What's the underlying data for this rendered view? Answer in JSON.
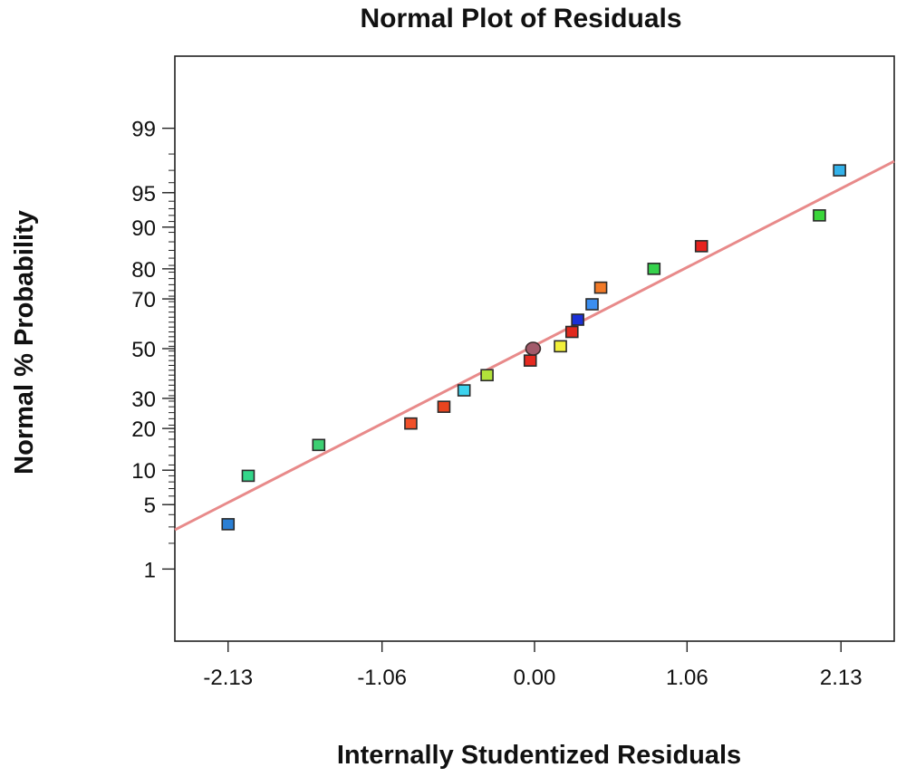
{
  "chart_data": {
    "type": "scatter",
    "title": "Normal Plot of Residuals",
    "xlabel": "Internally Studentized Residuals",
    "ylabel": "Normal % Probability",
    "x_ticks": [
      {
        "value": -2.13,
        "label": "-2.13"
      },
      {
        "value": -1.06,
        "label": "-1.06"
      },
      {
        "value": 0.0,
        "label": "0.00"
      },
      {
        "value": 1.06,
        "label": "1.06"
      },
      {
        "value": 2.13,
        "label": "2.13"
      }
    ],
    "y_ticks": [
      {
        "value": 1,
        "label": "1"
      },
      {
        "value": 5,
        "label": "5"
      },
      {
        "value": 10,
        "label": "10"
      },
      {
        "value": 20,
        "label": "20"
      },
      {
        "value": 30,
        "label": "30"
      },
      {
        "value": 50,
        "label": "50"
      },
      {
        "value": 70,
        "label": "70"
      },
      {
        "value": 80,
        "label": "80"
      },
      {
        "value": 90,
        "label": "90"
      },
      {
        "value": 95,
        "label": "95"
      },
      {
        "value": 99,
        "label": "99"
      }
    ],
    "y_scale": "normal-probability",
    "xlim": [
      -2.5,
      2.5
    ],
    "ylim": [
      0.1,
      99.9
    ],
    "grid": false,
    "points": [
      {
        "x": -2.13,
        "y": 3.2,
        "color": "#2a7fd4",
        "shape": "square"
      },
      {
        "x": -1.99,
        "y": 9.0,
        "color": "#33d68a",
        "shape": "square"
      },
      {
        "x": -1.5,
        "y": 15.5,
        "color": "#3ccf72",
        "shape": "square"
      },
      {
        "x": -0.86,
        "y": 21.5,
        "color": "#f0502a",
        "shape": "square"
      },
      {
        "x": -0.63,
        "y": 27.0,
        "color": "#e8441f",
        "shape": "square"
      },
      {
        "x": -0.49,
        "y": 33.0,
        "color": "#3dd3ee",
        "shape": "square"
      },
      {
        "x": -0.33,
        "y": 39.0,
        "color": "#b2e23a",
        "shape": "square"
      },
      {
        "x": -0.03,
        "y": 45.0,
        "color": "#e62a20",
        "shape": "square"
      },
      {
        "x": -0.01,
        "y": 50.0,
        "color": "#a25a6a",
        "shape": "circle"
      },
      {
        "x": 0.18,
        "y": 51.0,
        "color": "#f2f03a",
        "shape": "square"
      },
      {
        "x": 0.26,
        "y": 57.0,
        "color": "#e02a1e",
        "shape": "square"
      },
      {
        "x": 0.3,
        "y": 62.0,
        "color": "#1a30d8",
        "shape": "square"
      },
      {
        "x": 0.4,
        "y": 68.0,
        "color": "#3a8ef0",
        "shape": "square"
      },
      {
        "x": 0.46,
        "y": 74.0,
        "color": "#f27a28",
        "shape": "square"
      },
      {
        "x": 0.83,
        "y": 80.0,
        "color": "#36d24c",
        "shape": "square"
      },
      {
        "x": 1.16,
        "y": 86.0,
        "color": "#e8221e",
        "shape": "square"
      },
      {
        "x": 1.98,
        "y": 92.0,
        "color": "#3ad63a",
        "shape": "square"
      },
      {
        "x": 2.12,
        "y": 97.0,
        "color": "#33b2ea",
        "shape": "square"
      }
    ],
    "fit_line": {
      "x": [
        -2.5,
        2.5
      ],
      "y": [
        2.8,
        97.6
      ],
      "color": "#e88a8a"
    }
  }
}
